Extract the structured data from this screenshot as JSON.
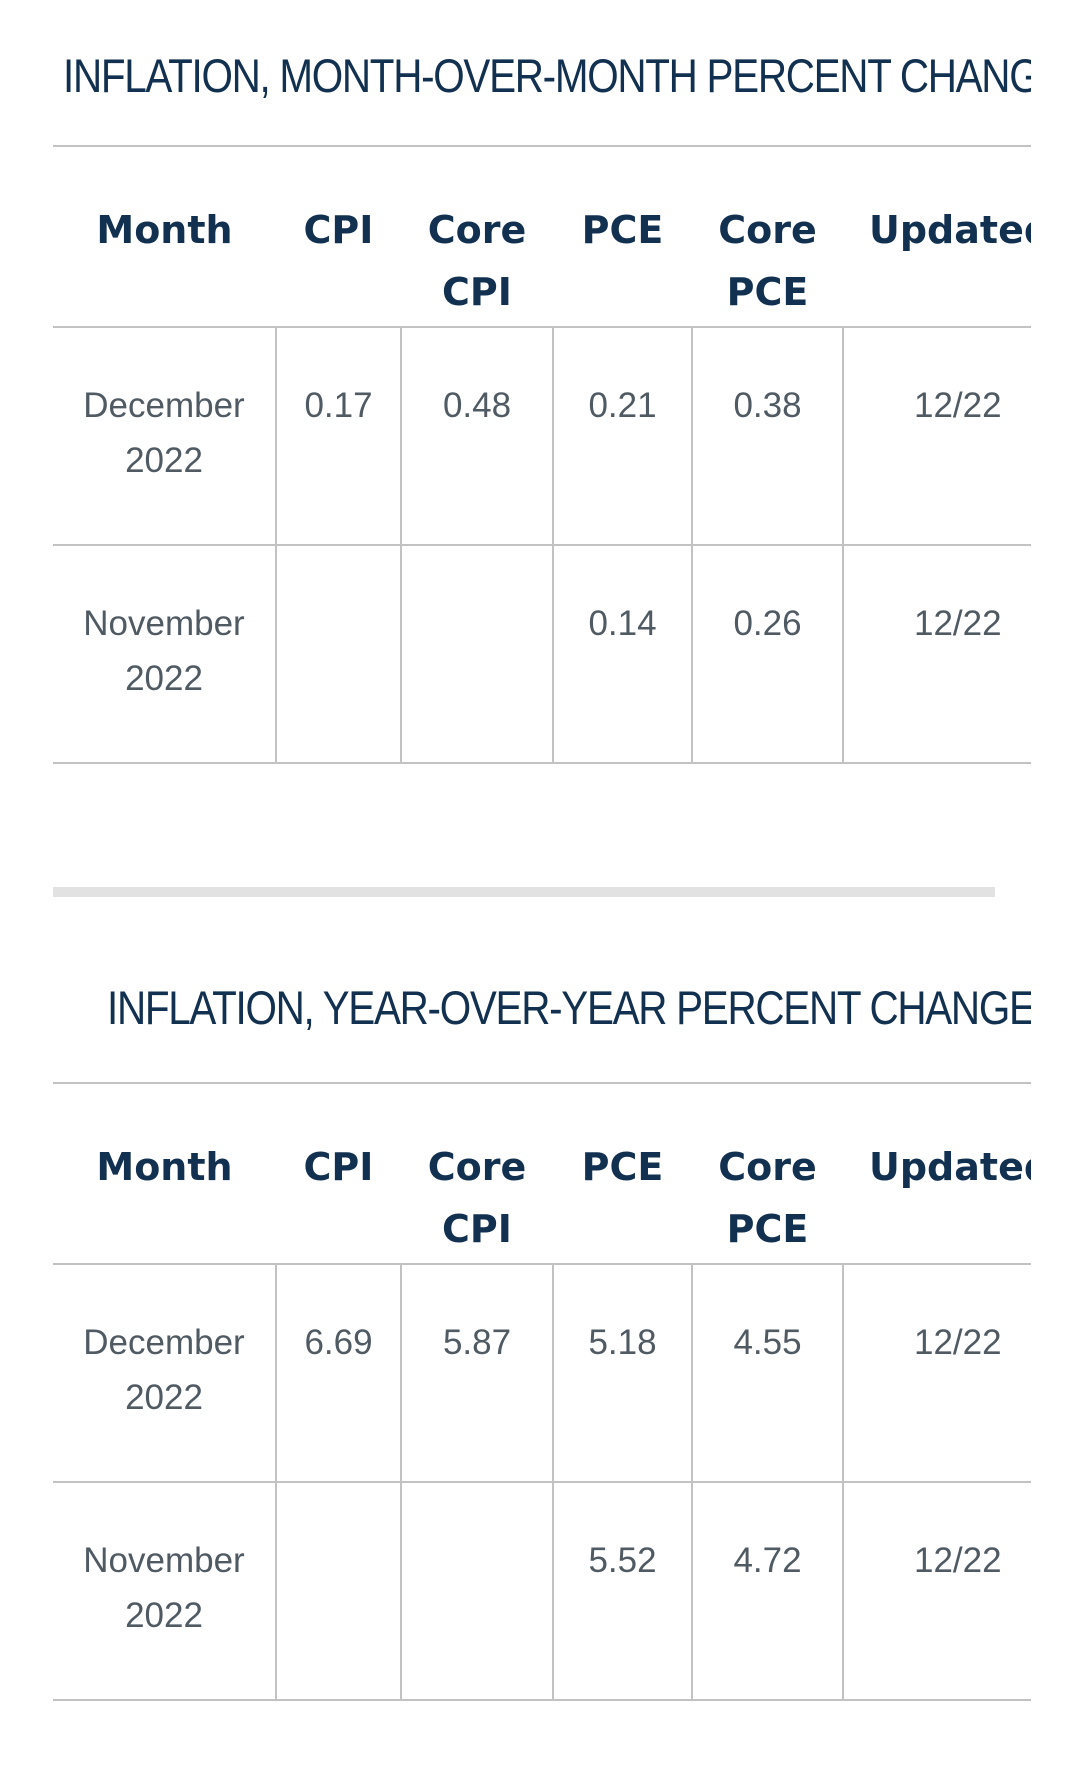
{
  "tables": [
    {
      "title": "INFLATION, MONTH-OVER-MONTH PERCENT CHANGE",
      "headers": [
        "Month",
        "CPI",
        "Core CPI",
        "PCE",
        "Core PCE",
        "Updated"
      ],
      "rows": [
        {
          "month": "December 2022",
          "cpi": "0.17",
          "core_cpi": "0.48",
          "pce": "0.21",
          "core_pce": "0.38",
          "updated": "12/22"
        },
        {
          "month": "November 2022",
          "cpi": "",
          "core_cpi": "",
          "pce": "0.14",
          "core_pce": "0.26",
          "updated": "12/22"
        }
      ]
    },
    {
      "title": "INFLATION, YEAR-OVER-YEAR PERCENT CHANGE",
      "headers": [
        "Month",
        "CPI",
        "Core CPI",
        "PCE",
        "Core PCE",
        "Updated"
      ],
      "rows": [
        {
          "month": "December 2022",
          "cpi": "6.69",
          "core_cpi": "5.87",
          "pce": "5.18",
          "core_pce": "4.55",
          "updated": "12/22"
        },
        {
          "month": "November 2022",
          "cpi": "",
          "core_cpi": "",
          "pce": "5.52",
          "core_pce": "4.72",
          "updated": "12/22"
        }
      ]
    }
  ]
}
